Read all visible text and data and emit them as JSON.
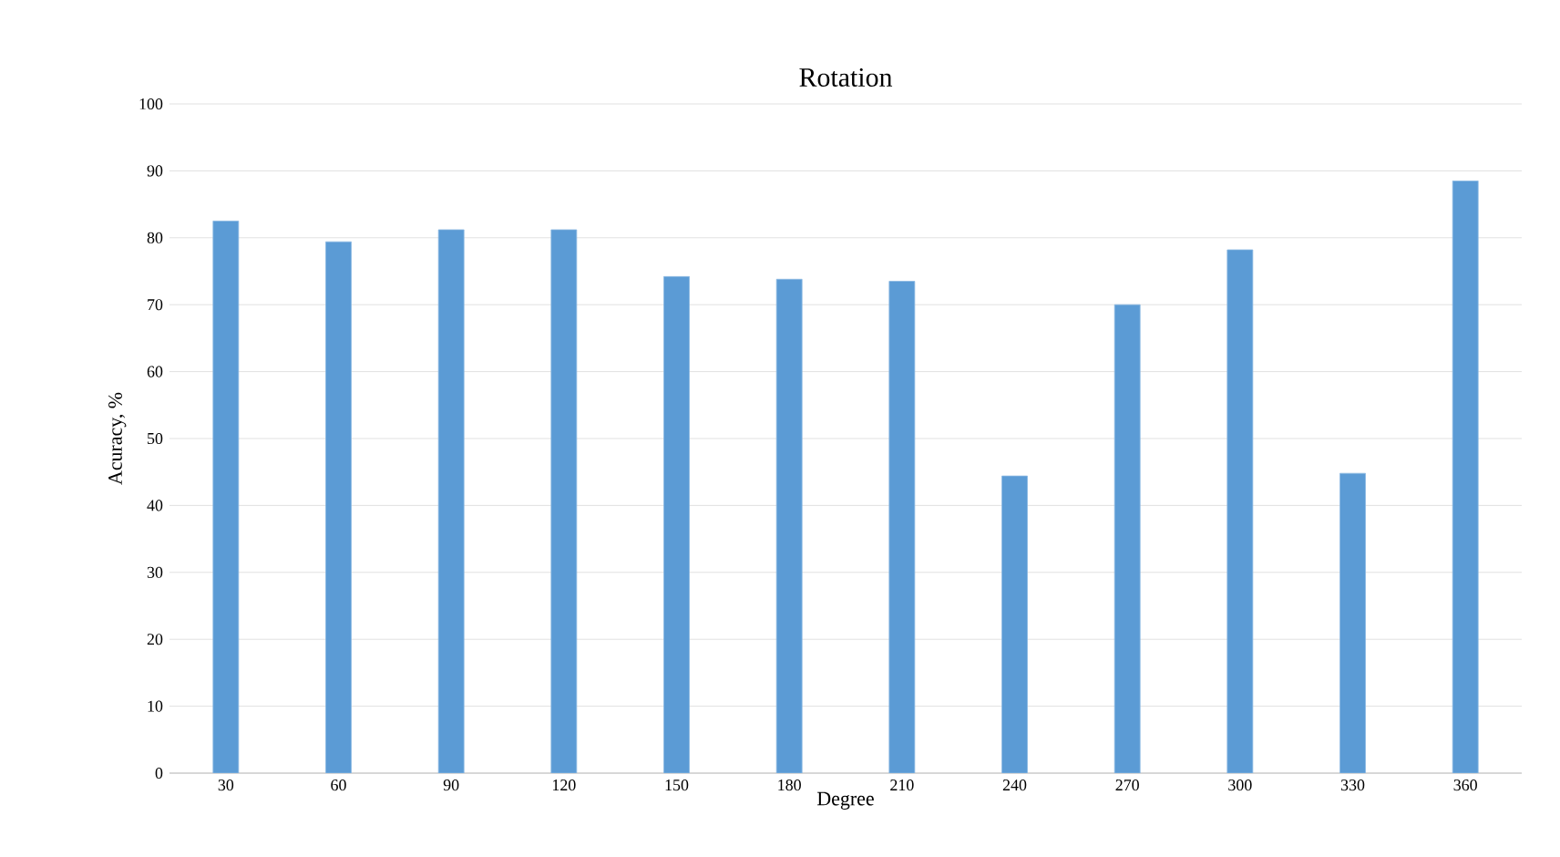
{
  "chart_data": {
    "type": "bar",
    "title": "Rotation",
    "xlabel": "Degree",
    "ylabel": "Acuracy, %",
    "categories": [
      "30",
      "60",
      "90",
      "120",
      "150",
      "180",
      "210",
      "240",
      "270",
      "300",
      "330",
      "360"
    ],
    "values": [
      82.5,
      79.4,
      81.2,
      81.2,
      74.2,
      73.8,
      73.5,
      44.4,
      70,
      78.2,
      44.8,
      88.5
    ],
    "color": "#5b9bd5",
    "ylim": [
      0,
      100
    ],
    "yticks": [
      0,
      10,
      20,
      30,
      40,
      50,
      60,
      70,
      80,
      90,
      100
    ],
    "grid": "y"
  }
}
